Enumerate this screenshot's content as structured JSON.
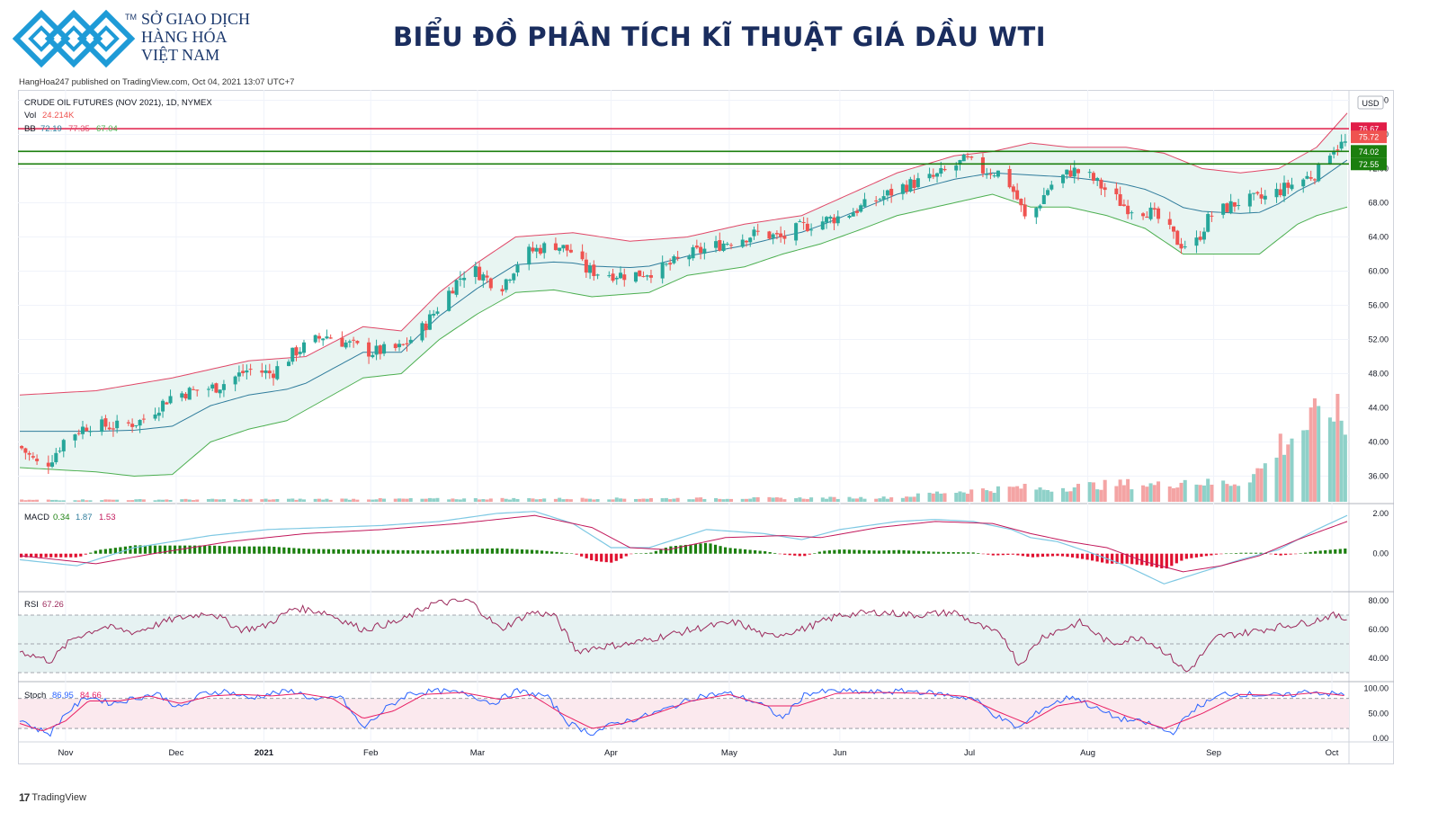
{
  "header": {
    "brand_lines": [
      "SỞ GIAO DỊCH",
      "HÀNG HÓA",
      "VIỆT NAM"
    ],
    "brand_tm": "TM",
    "title": "BIỂU ĐỒ PHÂN TÍCH KĨ THUẬT GIÁ DẦU WTI",
    "published": "HangHoa247 published on TradingView.com, Oct 04, 2021 13:07 UTC+7",
    "brand_color": "#1d3a6e",
    "logo_color": "#1e9bd7"
  },
  "footer": {
    "tradingview_label": "TradingView",
    "tradingview_icon": "tradingview-logo-icon"
  },
  "chart_data": {
    "type": "candlestick",
    "symbol_line": "CRUDE OIL FUTURES (NOV 2021), 1D, NYMEX",
    "currency": "USD",
    "vol_label": "Vol",
    "vol_value": "24.214K",
    "bb_label": "BB",
    "bb_values": [
      "72.19",
      "77.35",
      "67.04"
    ],
    "ylim": [
      33,
      81
    ],
    "yticks": [
      "80.00",
      "76.00",
      "72.00",
      "68.00",
      "64.00",
      "60.00",
      "56.00",
      "52.00",
      "48.00",
      "44.00",
      "40.00",
      "36.00"
    ],
    "xticks": [
      "Nov",
      "Dec",
      "2021",
      "Feb",
      "Mar",
      "Apr",
      "May",
      "Jun",
      "Jul",
      "Aug",
      "Sep",
      "Oct"
    ],
    "xtick_days": [
      12,
      41,
      64,
      92,
      120,
      155,
      186,
      215,
      249,
      280,
      313,
      344
    ],
    "total_days": 348,
    "price_anchors": [
      [
        0,
        39.5
      ],
      [
        6,
        36.8
      ],
      [
        9,
        38.5
      ],
      [
        12,
        40.5
      ],
      [
        18,
        42.0
      ],
      [
        26,
        41.8
      ],
      [
        32,
        42.5
      ],
      [
        40,
        45.5
      ],
      [
        52,
        46.5
      ],
      [
        60,
        48.5
      ],
      [
        66,
        48.0
      ],
      [
        72,
        50.5
      ],
      [
        80,
        52.5
      ],
      [
        92,
        50.5
      ],
      [
        100,
        51.0
      ],
      [
        106,
        53.5
      ],
      [
        110,
        56.0
      ],
      [
        114,
        58.5
      ],
      [
        118,
        60.5
      ],
      [
        126,
        58.0
      ],
      [
        132,
        62.0
      ],
      [
        140,
        63.2
      ],
      [
        146,
        62.0
      ],
      [
        148,
        60.2
      ],
      [
        152,
        59.8
      ],
      [
        160,
        59.5
      ],
      [
        168,
        60.2
      ],
      [
        176,
        62.0
      ],
      [
        186,
        63.5
      ],
      [
        194,
        64.5
      ],
      [
        200,
        63.8
      ],
      [
        204,
        65.0
      ],
      [
        210,
        65.8
      ],
      [
        216,
        66.5
      ],
      [
        224,
        68.2
      ],
      [
        232,
        70.0
      ],
      [
        240,
        71.0
      ],
      [
        248,
        73.0
      ],
      [
        252,
        71.8
      ],
      [
        258,
        71.5
      ],
      [
        262,
        68.0
      ],
      [
        264,
        65.5
      ],
      [
        266,
        67.0
      ],
      [
        270,
        70.0
      ],
      [
        276,
        71.8
      ],
      [
        280,
        71.2
      ],
      [
        286,
        69.0
      ],
      [
        290,
        67.5
      ],
      [
        296,
        67.0
      ],
      [
        300,
        65.5
      ],
      [
        304,
        63.2
      ],
      [
        308,
        63.0
      ],
      [
        312,
        66.5
      ],
      [
        320,
        68.2
      ],
      [
        326,
        68.5
      ],
      [
        332,
        69.8
      ],
      [
        340,
        71.5
      ],
      [
        344,
        74.5
      ],
      [
        348,
        75.0
      ]
    ],
    "bb_upper_anchors": [
      [
        0,
        45.5
      ],
      [
        20,
        46.0
      ],
      [
        40,
        47.5
      ],
      [
        60,
        49.5
      ],
      [
        75,
        50.0
      ],
      [
        90,
        53.5
      ],
      [
        100,
        53.0
      ],
      [
        110,
        57.5
      ],
      [
        120,
        61.0
      ],
      [
        130,
        64.0
      ],
      [
        145,
        64.5
      ],
      [
        160,
        63.5
      ],
      [
        175,
        64.0
      ],
      [
        190,
        65.5
      ],
      [
        205,
        66.5
      ],
      [
        215,
        68.5
      ],
      [
        230,
        71.5
      ],
      [
        245,
        73.5
      ],
      [
        255,
        74.0
      ],
      [
        265,
        75.0
      ],
      [
        275,
        74.5
      ],
      [
        290,
        74.5
      ],
      [
        300,
        73.8
      ],
      [
        310,
        72.0
      ],
      [
        320,
        71.5
      ],
      [
        330,
        72.0
      ],
      [
        340,
        74.5
      ],
      [
        348,
        78.5
      ]
    ],
    "bb_lower_anchors": [
      [
        0,
        37.0
      ],
      [
        20,
        36.5
      ],
      [
        30,
        36.0
      ],
      [
        40,
        36.2
      ],
      [
        50,
        40.0
      ],
      [
        60,
        41.5
      ],
      [
        70,
        42.5
      ],
      [
        80,
        45.0
      ],
      [
        90,
        47.5
      ],
      [
        100,
        48.0
      ],
      [
        110,
        52.0
      ],
      [
        115,
        53.5
      ],
      [
        120,
        55.0
      ],
      [
        130,
        57.5
      ],
      [
        140,
        57.8
      ],
      [
        150,
        57.0
      ],
      [
        165,
        57.5
      ],
      [
        175,
        59.5
      ],
      [
        190,
        60.5
      ],
      [
        200,
        62.0
      ],
      [
        210,
        63.2
      ],
      [
        220,
        64.8
      ],
      [
        230,
        66.5
      ],
      [
        245,
        68.0
      ],
      [
        255,
        69.0
      ],
      [
        265,
        67.5
      ],
      [
        275,
        67.5
      ],
      [
        285,
        66.5
      ],
      [
        295,
        65.0
      ],
      [
        305,
        62.0
      ],
      [
        315,
        62.0
      ],
      [
        325,
        62.0
      ],
      [
        335,
        65.5
      ],
      [
        340,
        66.5
      ],
      [
        348,
        67.5
      ]
    ],
    "volume_anchors": [
      [
        0,
        0.05
      ],
      [
        100,
        0.08
      ],
      [
        200,
        0.1
      ],
      [
        230,
        0.12
      ],
      [
        240,
        0.25
      ],
      [
        255,
        0.35
      ],
      [
        262,
        0.4
      ],
      [
        268,
        0.35
      ],
      [
        280,
        0.45
      ],
      [
        290,
        0.5
      ],
      [
        300,
        0.45
      ],
      [
        305,
        0.6
      ],
      [
        312,
        0.5
      ],
      [
        320,
        0.55
      ],
      [
        326,
        1.0
      ],
      [
        330,
        1.6
      ],
      [
        334,
        1.9
      ],
      [
        338,
        2.2
      ],
      [
        342,
        2.3
      ],
      [
        344,
        2.8
      ],
      [
        347,
        2.0
      ],
      [
        348,
        0.1
      ]
    ],
    "macd": {
      "label": "MACD",
      "values": [
        "0.34",
        "1.87",
        "1.53"
      ],
      "yticks": [
        "2.00",
        "0.00"
      ],
      "ylim": [
        -1.8,
        2.4
      ],
      "macd_anchors": [
        [
          0,
          -0.3
        ],
        [
          15,
          -0.6
        ],
        [
          30,
          0.3
        ],
        [
          50,
          0.9
        ],
        [
          65,
          1.2
        ],
        [
          80,
          1.3
        ],
        [
          95,
          1.4
        ],
        [
          110,
          1.6
        ],
        [
          125,
          2.0
        ],
        [
          135,
          2.1
        ],
        [
          145,
          1.5
        ],
        [
          155,
          0.3
        ],
        [
          165,
          0.3
        ],
        [
          180,
          1.2
        ],
        [
          195,
          1.0
        ],
        [
          205,
          0.7
        ],
        [
          215,
          1.2
        ],
        [
          230,
          1.6
        ],
        [
          240,
          1.7
        ],
        [
          250,
          1.6
        ],
        [
          260,
          1.2
        ],
        [
          265,
          0.8
        ],
        [
          272,
          0.6
        ],
        [
          280,
          0.1
        ],
        [
          290,
          -0.6
        ],
        [
          300,
          -1.5
        ],
        [
          310,
          -0.9
        ],
        [
          320,
          -0.3
        ],
        [
          330,
          0.2
        ],
        [
          340,
          1.2
        ],
        [
          348,
          1.9
        ]
      ],
      "signal_anchors": [
        [
          0,
          -0.1
        ],
        [
          20,
          -0.5
        ],
        [
          35,
          0.0
        ],
        [
          55,
          0.6
        ],
        [
          75,
          1.0
        ],
        [
          95,
          1.2
        ],
        [
          115,
          1.5
        ],
        [
          135,
          1.9
        ],
        [
          150,
          1.3
        ],
        [
          160,
          0.3
        ],
        [
          170,
          0.2
        ],
        [
          185,
          0.8
        ],
        [
          200,
          0.9
        ],
        [
          210,
          0.8
        ],
        [
          225,
          1.3
        ],
        [
          240,
          1.6
        ],
        [
          255,
          1.5
        ],
        [
          265,
          1.0
        ],
        [
          275,
          0.6
        ],
        [
          285,
          0.3
        ],
        [
          295,
          -0.4
        ],
        [
          305,
          -0.9
        ],
        [
          315,
          -0.6
        ],
        [
          325,
          -0.1
        ],
        [
          335,
          0.7
        ],
        [
          348,
          1.6
        ]
      ]
    },
    "rsi": {
      "label": "RSI",
      "value": "67.26",
      "yticks": [
        "80.00",
        "60.00",
        "40.00"
      ],
      "ylim": [
        25,
        85
      ],
      "bands": [
        30,
        50,
        70
      ],
      "anchors": [
        [
          0,
          45
        ],
        [
          8,
          38
        ],
        [
          14,
          54
        ],
        [
          22,
          62
        ],
        [
          30,
          58
        ],
        [
          40,
          67
        ],
        [
          50,
          72
        ],
        [
          58,
          60
        ],
        [
          64,
          62
        ],
        [
          72,
          75
        ],
        [
          80,
          72
        ],
        [
          90,
          60
        ],
        [
          100,
          66
        ],
        [
          108,
          78
        ],
        [
          118,
          80
        ],
        [
          126,
          60
        ],
        [
          134,
          72
        ],
        [
          140,
          70
        ],
        [
          146,
          45
        ],
        [
          152,
          48
        ],
        [
          160,
          50
        ],
        [
          168,
          55
        ],
        [
          180,
          62
        ],
        [
          188,
          65
        ],
        [
          196,
          55
        ],
        [
          205,
          60
        ],
        [
          215,
          70
        ],
        [
          225,
          72
        ],
        [
          235,
          70
        ],
        [
          245,
          72
        ],
        [
          252,
          62
        ],
        [
          258,
          55
        ],
        [
          262,
          35
        ],
        [
          268,
          55
        ],
        [
          278,
          65
        ],
        [
          286,
          50
        ],
        [
          294,
          55
        ],
        [
          300,
          45
        ],
        [
          306,
          30
        ],
        [
          314,
          55
        ],
        [
          322,
          58
        ],
        [
          330,
          62
        ],
        [
          338,
          65
        ],
        [
          344,
          70
        ],
        [
          348,
          67
        ]
      ]
    },
    "stoch": {
      "label": "Stoch",
      "values": [
        "86.95",
        "84.66"
      ],
      "yticks": [
        "100.00",
        "50.00",
        "0.00"
      ],
      "ylim": [
        -5,
        110
      ],
      "bands": [
        20,
        80
      ],
      "k_anchors": [
        [
          0,
          40
        ],
        [
          4,
          20
        ],
        [
          8,
          10
        ],
        [
          12,
          50
        ],
        [
          18,
          85
        ],
        [
          24,
          70
        ],
        [
          30,
          80
        ],
        [
          36,
          90
        ],
        [
          42,
          60
        ],
        [
          48,
          90
        ],
        [
          54,
          95
        ],
        [
          60,
          80
        ],
        [
          66,
          90
        ],
        [
          72,
          95
        ],
        [
          78,
          75
        ],
        [
          84,
          85
        ],
        [
          90,
          20
        ],
        [
          96,
          60
        ],
        [
          102,
          90
        ],
        [
          110,
          95
        ],
        [
          118,
          88
        ],
        [
          124,
          70
        ],
        [
          130,
          95
        ],
        [
          138,
          85
        ],
        [
          144,
          30
        ],
        [
          150,
          10
        ],
        [
          156,
          30
        ],
        [
          162,
          40
        ],
        [
          170,
          60
        ],
        [
          178,
          85
        ],
        [
          186,
          90
        ],
        [
          194,
          70
        ],
        [
          200,
          40
        ],
        [
          206,
          90
        ],
        [
          214,
          95
        ],
        [
          224,
          92
        ],
        [
          234,
          95
        ],
        [
          242,
          88
        ],
        [
          250,
          80
        ],
        [
          256,
          45
        ],
        [
          262,
          20
        ],
        [
          268,
          60
        ],
        [
          276,
          85
        ],
        [
          282,
          60
        ],
        [
          288,
          40
        ],
        [
          296,
          30
        ],
        [
          302,
          10
        ],
        [
          308,
          60
        ],
        [
          316,
          90
        ],
        [
          324,
          88
        ],
        [
          332,
          85
        ],
        [
          338,
          95
        ],
        [
          342,
          90
        ],
        [
          348,
          87
        ]
      ],
      "d_anchors": [
        [
          0,
          30
        ],
        [
          6,
          15
        ],
        [
          12,
          35
        ],
        [
          18,
          75
        ],
        [
          26,
          75
        ],
        [
          34,
          85
        ],
        [
          42,
          70
        ],
        [
          50,
          85
        ],
        [
          58,
          88
        ],
        [
          66,
          85
        ],
        [
          74,
          90
        ],
        [
          82,
          80
        ],
        [
          90,
          40
        ],
        [
          98,
          55
        ],
        [
          106,
          88
        ],
        [
          116,
          92
        ],
        [
          126,
          78
        ],
        [
          134,
          88
        ],
        [
          142,
          50
        ],
        [
          150,
          20
        ],
        [
          158,
          30
        ],
        [
          166,
          48
        ],
        [
          176,
          75
        ],
        [
          186,
          88
        ],
        [
          196,
          65
        ],
        [
          204,
          65
        ],
        [
          214,
          90
        ],
        [
          226,
          92
        ],
        [
          238,
          90
        ],
        [
          248,
          84
        ],
        [
          256,
          55
        ],
        [
          264,
          30
        ],
        [
          272,
          65
        ],
        [
          280,
          75
        ],
        [
          290,
          45
        ],
        [
          300,
          20
        ],
        [
          310,
          50
        ],
        [
          320,
          88
        ],
        [
          332,
          86
        ],
        [
          340,
          92
        ],
        [
          348,
          85
        ]
      ]
    },
    "levels": [
      {
        "value": 76.67,
        "label": "76.67",
        "color": "#e11d48"
      },
      {
        "value": 74.02,
        "label": "74.02",
        "color": "#1b7f0e"
      },
      {
        "value": 72.55,
        "label": "72.55",
        "color": "#1b7f0e"
      }
    ],
    "last_price_label": "75.72",
    "colors": {
      "up": "#26a69a",
      "down": "#ef5350",
      "bb_upper": "#e04868",
      "bb_lower": "#4caf50",
      "bb_basis": "#2f7c9c",
      "bb_fill": "#e8f5f2",
      "macd_line": "#7ec8e3",
      "signal_line": "#c2185b",
      "hist_pos": "#1b7f0e",
      "hist_neg": "#e0102f",
      "rsi_line": "#9c2a5c",
      "rsi_fill": "#e6f2f2",
      "stoch_k": "#2962ff",
      "stoch_d": "#e91e63",
      "stoch_fill": "#fbe9ee"
    }
  }
}
